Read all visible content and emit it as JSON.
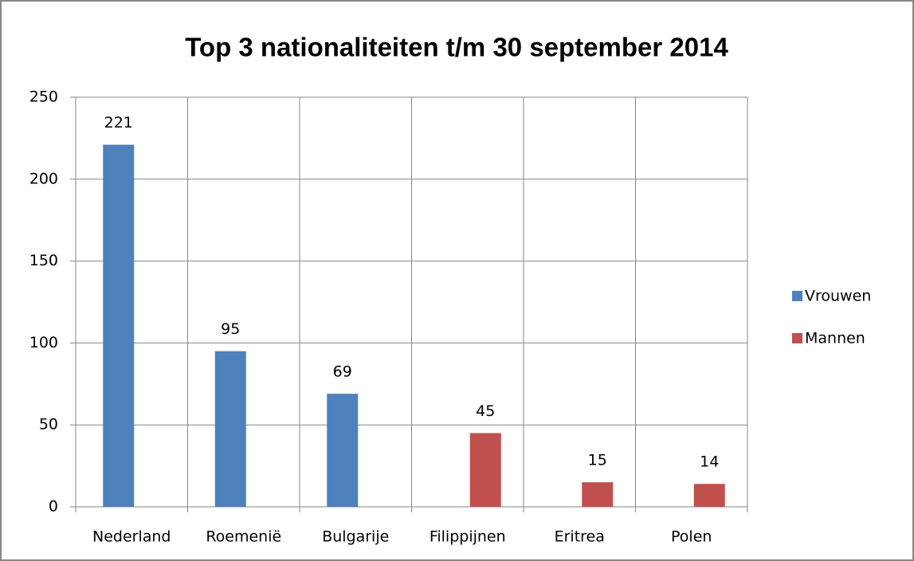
{
  "chart_data": {
    "type": "bar",
    "title": "Top 3 nationaliteiten t/m 30 september 2014",
    "categories": [
      "Nederland",
      "Roemenië",
      "Bulgarije",
      "Filippijnen",
      "Eritrea",
      "Polen"
    ],
    "series": [
      {
        "name": "Vrouwen",
        "color": "#4f81bd",
        "values": [
          221,
          95,
          69,
          null,
          null,
          null
        ]
      },
      {
        "name": "Mannen",
        "color": "#c0504d",
        "values": [
          null,
          null,
          null,
          45,
          15,
          14
        ]
      }
    ],
    "ylim": [
      0,
      250
    ],
    "yticks": [
      0,
      50,
      100,
      150,
      200,
      250
    ],
    "grid": true,
    "legend": "right"
  }
}
